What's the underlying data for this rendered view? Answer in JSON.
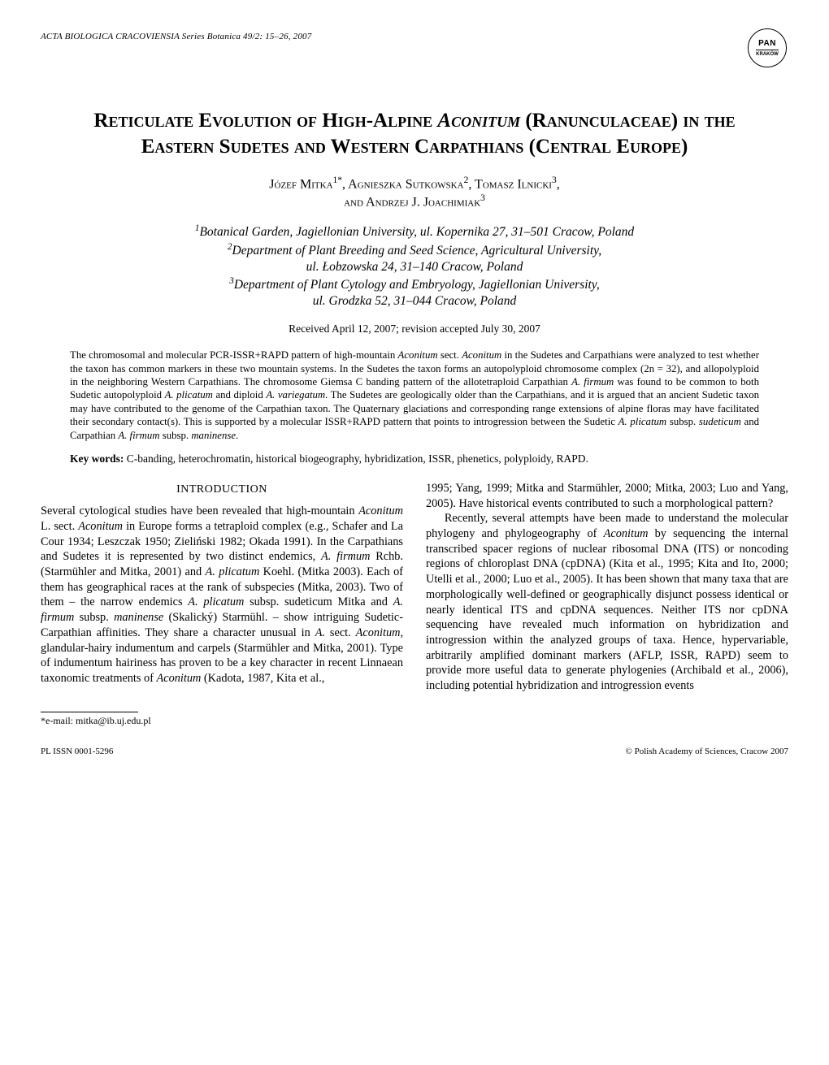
{
  "running_header": "ACTA BIOLOGICA CRACOVIENSIA Series Botanica 49/2: 15–26, 2007",
  "logo": {
    "top": "PAN",
    "bottom": "KRAKÓW"
  },
  "title_html": "R<span class='sc'>eticulate</span> E<span class='sc'>volution of</span> H<span class='sc'>igh</span>-A<span class='sc'>lpine</span> <i>A<span class='sc'>conitum</span></i> (R<span class='sc'>anunculaceae</span>) <span class='sc'>in the</span> E<span class='sc'>astern</span> S<span class='sc'>udetes</span> <span class='sc'>and</span> W<span class='sc'>estern</span> C<span class='sc'>arpathians</span> (C<span class='sc'>entral</span> E<span class='sc'>urope</span>)",
  "authors_html": "J<span class='sc'>ózef</span> M<span class='sc'>itka</span><sup>1*</sup>, A<span class='sc'>gnieszka</span> S<span class='sc'>utkowska</span><sup>2</sup>, T<span class='sc'>omasz</span> I<span class='sc'>lnicki</span><sup>3</sup>,<br><span class='sc'>and</span> A<span class='sc'>ndrzej</span> J. J<span class='sc'>oachimiak</span><sup>3</sup>",
  "affiliations_html": "<sup>1</sup>Botanical Garden, Jagiellonian University, ul. Kopernika 27, 31–501 Cracow, Poland<br><sup>2</sup>Department of Plant Breeding and Seed Science, Agricultural University,<br>ul. Łobzowska 24, 31–140 Cracow, Poland<br><sup>3</sup>Department of Plant Cytology and Embryology, Jagiellonian University,<br>ul. Grodzka 52, 31–044 Cracow, Poland",
  "received": "Received April 12, 2007; revision accepted July 30, 2007",
  "abstract_html": "The chromosomal and molecular PCR-ISSR+RAPD pattern of high-mountain <i>Aconitum</i> sect. <i>Aconitum</i> in the Sudetes and Carpathians were analyzed to test whether the taxon has common markers in these two mountain systems. In the Sudetes the taxon forms an autopolyploid chromosome complex (2n = 32), and allopolyploid in the neighboring Western Carpathians. The chromosome Giemsa C banding pattern of the allotetraploid Carpathian <i>A. firmum</i> was found to be common to both Sudetic autopolyploid <i>A. plicatum</i> and diploid <i>A. variegatum</i>. The Sudetes are geologically older than the Carpathians, and it is argued that an ancient Sudetic taxon may have contributed to the genome of the Carpathian taxon. The Quaternary glaciations and corresponding range extensions of alpine floras may have facilitated their secondary contact(s). This is supported by a molecular ISSR+RAPD pattern that points to introgression between the Sudetic <i>A. plicatum</i> subsp. <i>sudeticum</i> and Carpathian <i>A. firmum</i> subsp. <i>maninense</i>.",
  "keywords_label": "Key words:",
  "keywords_text": " C-banding, heterochromatin, historical biogeography, hybridization, ISSR, phenetics, polyploidy, RAPD.",
  "section_heading": "INTRODUCTION",
  "col_left_html": "Several cytological studies have been revealed that high-mountain <i>Aconitum</i> L. sect. <i>Aconitum</i> in Europe forms a tetraploid complex (e.g., Schafer and La Cour 1934; Leszczak 1950; Zieliński 1982; Okada 1991). In the Carpathians and Sudetes it is represented by two distinct endemics, <i>A. firmum</i> Rchb. (Starmühler and Mitka, 2001) and <i>A. plicatum</i> Koehl. (Mitka 2003). Each of them has geographical races at the rank of subspecies (Mitka, 2003). Two of them – the narrow endemics <i>A. plicatum</i> subsp. sudeticum Mitka and <i>A. firmum</i> subsp. <i>maninense</i> (Skalický) Starmühl. – show intriguing Sudetic-Carpathian affinities. They share a character unusual in <i>A.</i> sect. <i>Aconitum</i>, glandular-hairy indumentum and carpels (Starmühler and Mitka, 2001). Type of indumentum hairiness has proven to be a key character in recent Linnaean taxonomic treatments of <i>Aconitum</i> (Kadota, 1987, Kita et al.,",
  "col_right_p1_html": "1995; Yang, 1999; Mitka and Starmühler, 2000; Mitka, 2003; Luo and Yang, 2005). Have historical events contributed to such a morphological pattern?",
  "col_right_p2_html": "Recently, several attempts have been made to understand the molecular phylogeny and phylogeography of <i>Aconitum</i> by sequencing the internal transcribed spacer regions of nuclear ribosomal DNA (ITS) or noncoding regions of chloroplast DNA (cpDNA) (Kita et al., 1995; Kita and Ito, 2000; Utelli et al., 2000; Luo et al., 2005). It has been shown that many taxa that are morphologically well-defined or geographically disjunct possess identical or nearly identical ITS and cpDNA sequences. Neither ITS nor cpDNA sequencing have revealed much information on hybridization and introgression within the analyzed groups of taxa. Hence, hypervariable, arbitrarily amplified dominant markers (AFLP, ISSR, RAPD) seem to provide more useful data to generate phylogenies (Archibald et al., 2006), including potential hybridization and introgression events",
  "footnote": "*e-mail: mitka@ib.uj.edu.pl",
  "footer_left": "PL ISSN 0001-5296",
  "footer_right": "© Polish Academy of Sciences, Cracow 2007"
}
